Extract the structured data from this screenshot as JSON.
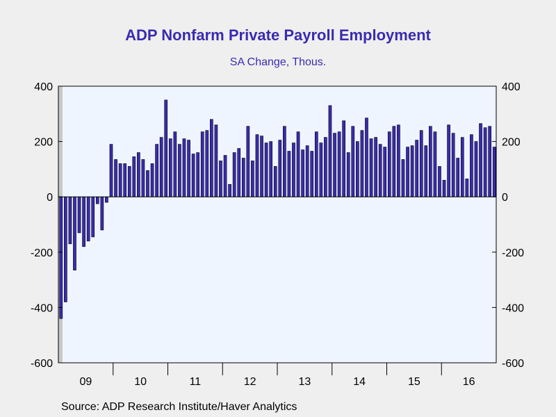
{
  "header": {
    "title": "ADP Nonfarm Private Payroll Employment",
    "subtitle": "SA Change, Thous."
  },
  "footer": {
    "source": "Source:  ADP Research Institute/Haver Analytics"
  },
  "chart_data": {
    "type": "bar",
    "title": "ADP Nonfarm Private Payroll Employment",
    "subtitle": "SA Change, Thous.",
    "xlabel": "",
    "ylabel": "",
    "ylim": [
      -600,
      400
    ],
    "yticks": [
      400,
      200,
      0,
      -200,
      -400,
      -600
    ],
    "xtick_labels": [
      "09",
      "10",
      "11",
      "12",
      "13",
      "14",
      "15",
      "16"
    ],
    "start": "2009-01",
    "end": "2016-12",
    "recession_shading": {
      "from": "2009-01",
      "to": "2009-06"
    },
    "bar_color": "#3a2bb0",
    "grid": false,
    "series": [
      {
        "values": [
          -440,
          -380,
          -170,
          -265,
          -130,
          -180,
          -160,
          -145,
          -25,
          -120,
          -20,
          190,
          135,
          120,
          120,
          110,
          145,
          160,
          135,
          95,
          120,
          190,
          215,
          350,
          210,
          235,
          190,
          210,
          205,
          155,
          160,
          235,
          240,
          280,
          260,
          130,
          150,
          45,
          160,
          175,
          140,
          255,
          130,
          225,
          220,
          195,
          200,
          110,
          205,
          255,
          165,
          195,
          235,
          170,
          185,
          165,
          235,
          195,
          215,
          330,
          230,
          235,
          275,
          160,
          255,
          200,
          240,
          285,
          210,
          215,
          190,
          180,
          235,
          255,
          260,
          135,
          180,
          185,
          205,
          240,
          185,
          255,
          235,
          110,
          60,
          260,
          230,
          140,
          215,
          65,
          225,
          200,
          265,
          250,
          255,
          180
        ]
      }
    ]
  }
}
